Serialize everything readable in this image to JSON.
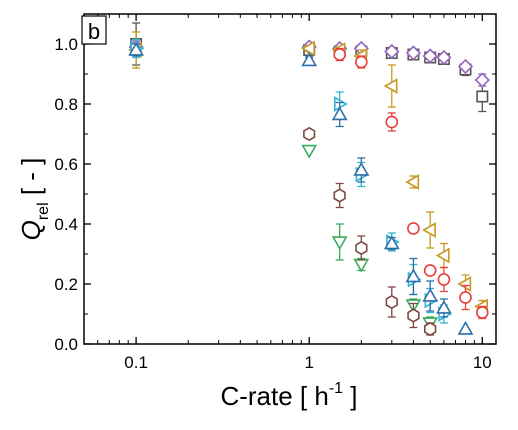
{
  "panel_label": "b",
  "chart_data": {
    "type": "scatter",
    "title": "",
    "xlabel": "C-rate [ h",
    "xlabel_sup": "-1",
    "xlabel_tail": " ]",
    "ylabel_main": "Q",
    "ylabel_sub": "rel",
    "ylabel_tail": " [ - ]",
    "xscale": "log",
    "xlim": [
      0.05,
      12
    ],
    "ylim": [
      0.0,
      1.1
    ],
    "x_ticks": [
      {
        "value": 0.1,
        "label": "0.1"
      },
      {
        "value": 1,
        "label": "1"
      },
      {
        "value": 10,
        "label": "10"
      }
    ],
    "y_ticks": [
      {
        "value": 0.0,
        "label": "0.0"
      },
      {
        "value": 0.2,
        "label": "0.2"
      },
      {
        "value": 0.4,
        "label": "0.4"
      },
      {
        "value": 0.6,
        "label": "0.6"
      },
      {
        "value": 0.8,
        "label": "0.8"
      },
      {
        "value": 1.0,
        "label": "1.0"
      }
    ],
    "grid": false,
    "series": [
      {
        "marker": "square",
        "color": "#555555",
        "points": [
          {
            "x": 0.1,
            "y": 1.0,
            "err": 0.07
          },
          {
            "x": 1,
            "y": 0.98,
            "err": 0.02
          },
          {
            "x": 1.5,
            "y": 0.975,
            "err": 0.01
          },
          {
            "x": 2,
            "y": 0.975,
            "err": 0.01
          },
          {
            "x": 3,
            "y": 0.97,
            "err": 0.01
          },
          {
            "x": 4,
            "y": 0.965,
            "err": 0.01
          },
          {
            "x": 5,
            "y": 0.955,
            "err": 0.01
          },
          {
            "x": 6,
            "y": 0.95,
            "err": 0.01
          },
          {
            "x": 8,
            "y": 0.915,
            "err": 0.02
          },
          {
            "x": 10,
            "y": 0.825,
            "err": 0.05
          }
        ]
      },
      {
        "marker": "diamond",
        "color": "#9467bd",
        "points": [
          {
            "x": 0.1,
            "y": 0.99,
            "err": 0.02
          },
          {
            "x": 1,
            "y": 0.99,
            "err": 0.01
          },
          {
            "x": 1.5,
            "y": 0.985,
            "err": 0.01
          },
          {
            "x": 2,
            "y": 0.985,
            "err": 0.01
          },
          {
            "x": 3,
            "y": 0.975,
            "err": 0.01
          },
          {
            "x": 4,
            "y": 0.97,
            "err": 0.01
          },
          {
            "x": 5,
            "y": 0.96,
            "err": 0.01
          },
          {
            "x": 6,
            "y": 0.955,
            "err": 0.01
          },
          {
            "x": 8,
            "y": 0.925,
            "err": 0.01
          },
          {
            "x": 10,
            "y": 0.88,
            "err": 0.02
          }
        ]
      },
      {
        "marker": "triangle-left",
        "color": "#c89a24",
        "points": [
          {
            "x": 0.1,
            "y": 0.98,
            "err": 0.06
          },
          {
            "x": 1,
            "y": 0.985,
            "err": 0.01
          },
          {
            "x": 1.5,
            "y": 0.98,
            "err": 0.01
          },
          {
            "x": 2,
            "y": 0.96,
            "err": 0.02
          },
          {
            "x": 3,
            "y": 0.86,
            "err": 0.07
          },
          {
            "x": 4,
            "y": 0.54,
            "err": 0.02
          },
          {
            "x": 5,
            "y": 0.38,
            "err": 0.06
          },
          {
            "x": 6,
            "y": 0.295,
            "err": 0.04
          },
          {
            "x": 8,
            "y": 0.2,
            "err": 0.03
          },
          {
            "x": 10,
            "y": 0.125,
            "err": 0.02
          }
        ]
      },
      {
        "marker": "circle",
        "color": "#e8403a",
        "points": [
          {
            "x": 1.5,
            "y": 0.965,
            "err": 0.02
          },
          {
            "x": 2,
            "y": 0.94,
            "err": 0.02
          },
          {
            "x": 3,
            "y": 0.74,
            "err": 0.03
          },
          {
            "x": 4,
            "y": 0.385,
            "err": 0.01
          },
          {
            "x": 5,
            "y": 0.245,
            "err": 0.01
          },
          {
            "x": 6,
            "y": 0.215,
            "err": 0.04
          },
          {
            "x": 8,
            "y": 0.155,
            "err": 0.04
          },
          {
            "x": 10,
            "y": 0.105,
            "err": 0.02
          }
        ]
      },
      {
        "marker": "triangle-right",
        "color": "#2fb6d0",
        "points": [
          {
            "x": 0.1,
            "y": 0.985,
            "err": 0.03
          },
          {
            "x": 1.5,
            "y": 0.8,
            "err": 0.04
          },
          {
            "x": 2,
            "y": 0.565,
            "err": 0.04
          },
          {
            "x": 3,
            "y": 0.34,
            "err": 0.03
          },
          {
            "x": 4,
            "y": 0.215,
            "err": 0.05
          },
          {
            "x": 5,
            "y": 0.145,
            "err": 0.04
          },
          {
            "x": 6,
            "y": 0.1,
            "err": 0.03
          }
        ]
      },
      {
        "marker": "triangle-up",
        "color": "#2b6fa8",
        "points": [
          {
            "x": 0.1,
            "y": 0.98,
            "err": 0.02
          },
          {
            "x": 1,
            "y": 0.945,
            "err": 0.01
          },
          {
            "x": 1.5,
            "y": 0.765,
            "err": 0.04
          },
          {
            "x": 2,
            "y": 0.58,
            "err": 0.04
          },
          {
            "x": 3,
            "y": 0.335,
            "err": 0.02
          },
          {
            "x": 4,
            "y": 0.225,
            "err": 0.06
          },
          {
            "x": 5,
            "y": 0.16,
            "err": 0.05
          },
          {
            "x": 6,
            "y": 0.12,
            "err": 0.03
          },
          {
            "x": 8,
            "y": 0.05,
            "err": 0.0
          }
        ]
      },
      {
        "marker": "triangle-down",
        "color": "#3aaa5c",
        "points": [
          {
            "x": 1,
            "y": 0.645,
            "err": 0.0
          },
          {
            "x": 1.5,
            "y": 0.34,
            "err": 0.06
          },
          {
            "x": 2,
            "y": 0.265,
            "err": 0.02
          },
          {
            "x": 4,
            "y": 0.13,
            "err": 0.02
          },
          {
            "x": 5,
            "y": 0.07,
            "err": 0.02
          }
        ]
      },
      {
        "marker": "hexagon",
        "color": "#7b4a42",
        "points": [
          {
            "x": 1,
            "y": 0.7,
            "err": 0.0
          },
          {
            "x": 1.5,
            "y": 0.495,
            "err": 0.04
          },
          {
            "x": 2,
            "y": 0.32,
            "err": 0.04
          },
          {
            "x": 3,
            "y": 0.14,
            "err": 0.05
          },
          {
            "x": 4,
            "y": 0.095,
            "err": 0.04
          },
          {
            "x": 5,
            "y": 0.05,
            "err": 0.02
          }
        ]
      }
    ]
  }
}
